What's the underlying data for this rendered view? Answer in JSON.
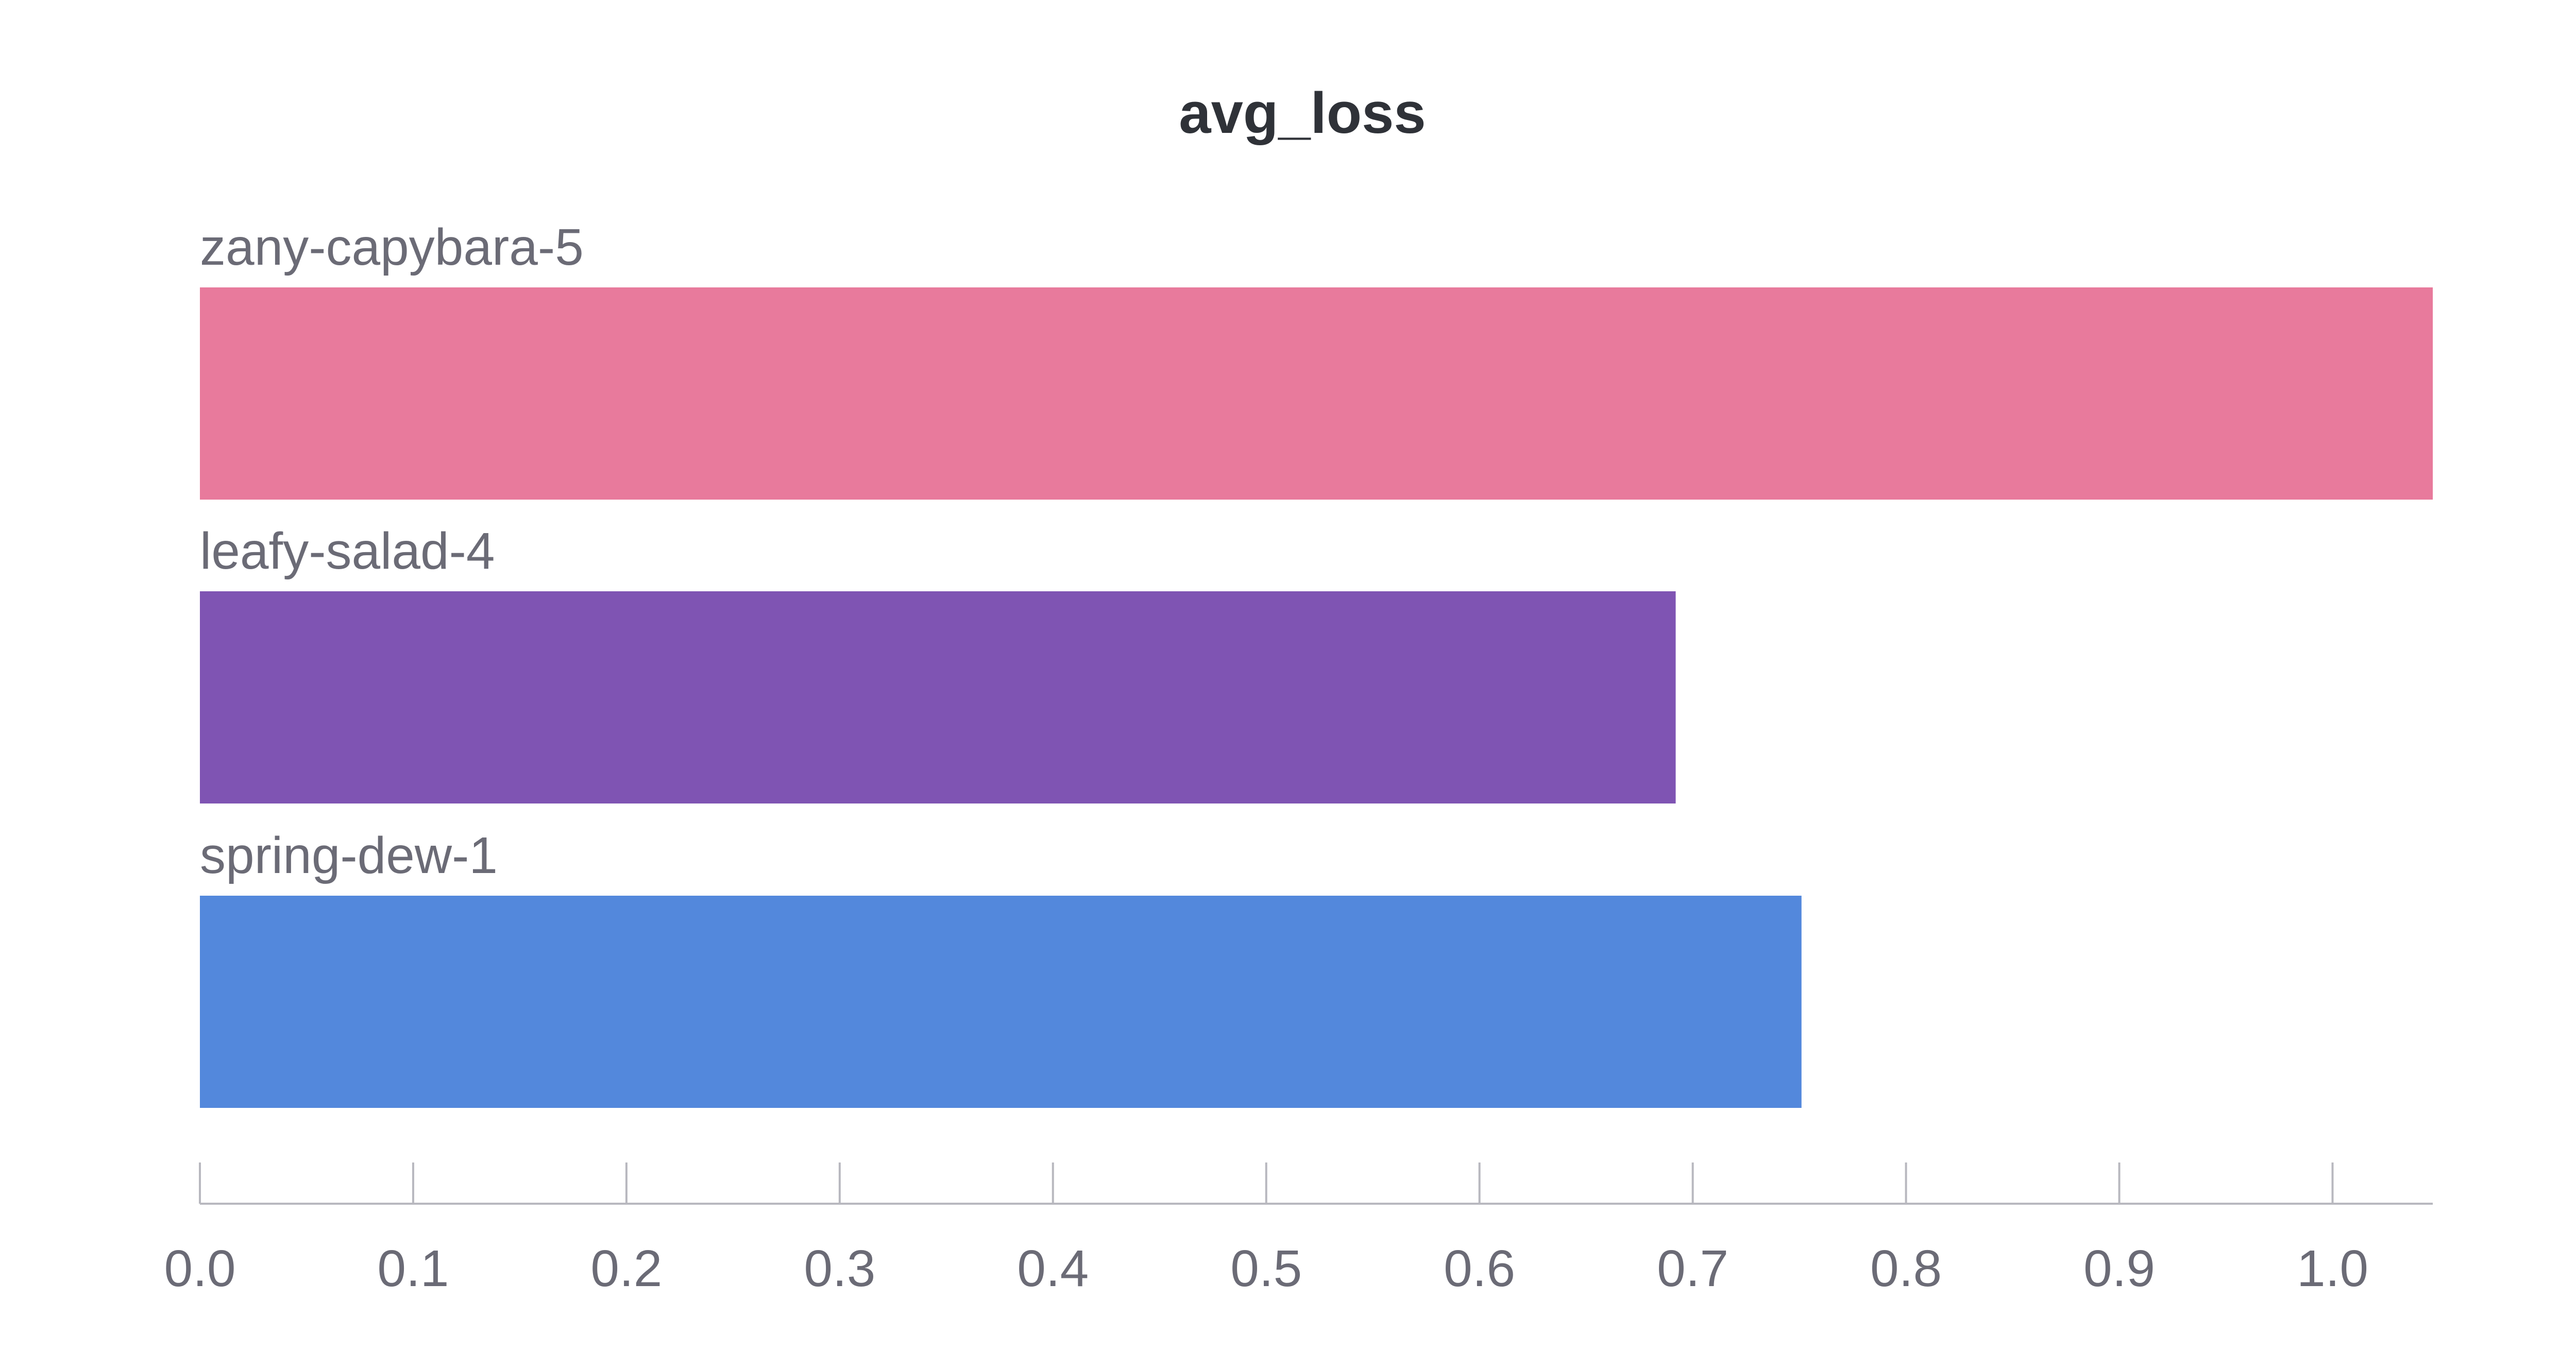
{
  "chart_data": {
    "type": "bar",
    "orientation": "horizontal",
    "title": "avg_loss",
    "xlabel": "",
    "ylabel": "",
    "categories": [
      "zany-capybara-5",
      "leafy-salad-4",
      "spring-dew-1"
    ],
    "values": [
      1.047,
      0.692,
      0.751
    ],
    "colors": [
      "#e87a9c",
      "#7f54b3",
      "#5388dc"
    ],
    "xlim": [
      0,
      1.047
    ],
    "xticks": [
      0.0,
      0.1,
      0.2,
      0.3,
      0.4,
      0.5,
      0.6,
      0.7,
      0.8,
      0.9,
      1.0
    ],
    "xtick_labels": [
      "0.0",
      "0.1",
      "0.2",
      "0.3",
      "0.4",
      "0.5",
      "0.6",
      "0.7",
      "0.8",
      "0.9",
      "1.0"
    ],
    "grid": false,
    "legend": "none"
  }
}
